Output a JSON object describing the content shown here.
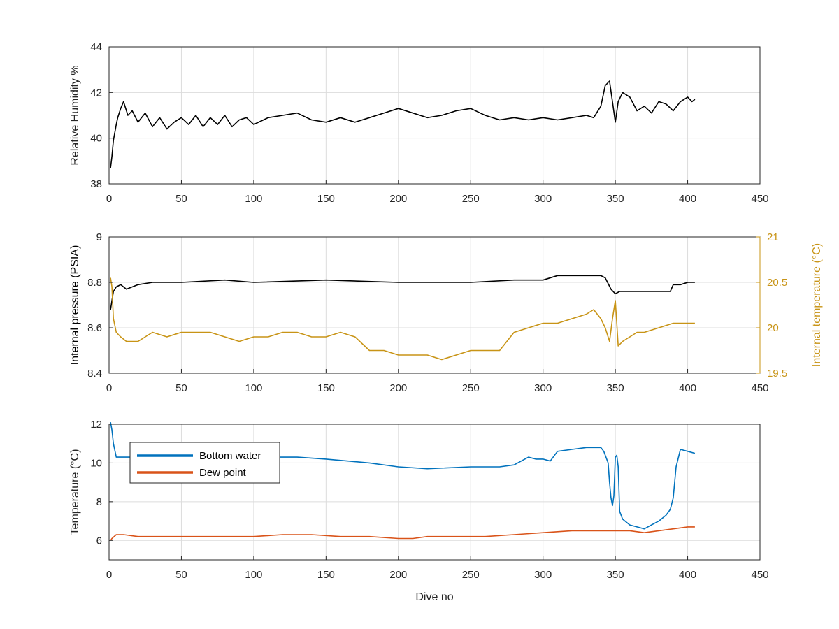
{
  "colors": {
    "background": "#ffffff",
    "axes_box": "#262626",
    "grid": "#dcdcdc",
    "black_series": "#000000",
    "blue": "#0072BD",
    "orange": "#D95319",
    "gold": "#C89416"
  },
  "chart_data": [
    {
      "type": "line",
      "title": "",
      "xlabel": "",
      "ylabel": "Relative Humidity %",
      "xlim": [
        0,
        450
      ],
      "ylim": [
        38,
        44
      ],
      "xticks": [
        0,
        50,
        100,
        150,
        200,
        250,
        300,
        350,
        400,
        450
      ],
      "yticks": [
        38,
        40,
        42,
        44
      ],
      "grid": true,
      "series": [
        {
          "color": "#000000",
          "x": [
            1,
            2,
            3,
            5,
            6,
            8,
            10,
            13,
            16,
            20,
            25,
            30,
            35,
            40,
            45,
            50,
            55,
            60,
            65,
            70,
            75,
            80,
            85,
            90,
            95,
            100,
            110,
            120,
            130,
            140,
            150,
            160,
            170,
            180,
            190,
            200,
            210,
            220,
            230,
            240,
            250,
            260,
            270,
            280,
            290,
            300,
            310,
            320,
            330,
            335,
            340,
            343,
            346,
            348,
            350,
            352,
            355,
            360,
            365,
            370,
            375,
            380,
            385,
            390,
            395,
            400,
            403,
            405
          ],
          "y": [
            38.7,
            39.2,
            39.9,
            40.6,
            40.9,
            41.3,
            41.6,
            41.0,
            41.2,
            40.7,
            41.1,
            40.5,
            40.9,
            40.4,
            40.7,
            40.9,
            40.6,
            41.0,
            40.5,
            40.9,
            40.6,
            41.0,
            40.5,
            40.8,
            40.9,
            40.6,
            40.9,
            41.0,
            41.1,
            40.8,
            40.7,
            40.9,
            40.7,
            40.9,
            41.1,
            41.3,
            41.1,
            40.9,
            41.0,
            41.2,
            41.3,
            41.0,
            40.8,
            40.9,
            40.8,
            40.9,
            40.8,
            40.9,
            41.0,
            40.9,
            41.4,
            42.3,
            42.5,
            41.6,
            40.7,
            41.6,
            42.0,
            41.8,
            41.2,
            41.4,
            41.1,
            41.6,
            41.5,
            41.2,
            41.6,
            41.8,
            41.6,
            41.7
          ]
        }
      ]
    },
    {
      "type": "line",
      "title": "",
      "xlabel": "",
      "ylabel": "Internal pressure (PSIA)",
      "ylabel_right": "Internal temperature (°C)",
      "xlim": [
        0,
        450
      ],
      "ylim": [
        8.4,
        9
      ],
      "ylim_right": [
        19.5,
        21
      ],
      "xticks": [
        0,
        50,
        100,
        150,
        200,
        250,
        300,
        350,
        400,
        450
      ],
      "yticks": [
        8.4,
        8.6,
        8.8,
        9
      ],
      "yticks_right": [
        19.5,
        20,
        20.5,
        21
      ],
      "grid": true,
      "series": [
        {
          "axis": "left",
          "color": "#000000",
          "x": [
            1,
            2,
            3,
            5,
            8,
            12,
            20,
            30,
            50,
            80,
            100,
            150,
            200,
            250,
            280,
            300,
            310,
            320,
            330,
            340,
            343,
            347,
            350,
            353,
            360,
            370,
            380,
            388,
            390,
            395,
            400,
            405
          ],
          "y": [
            8.68,
            8.72,
            8.76,
            8.78,
            8.79,
            8.77,
            8.79,
            8.8,
            8.8,
            8.81,
            8.8,
            8.81,
            8.8,
            8.8,
            8.81,
            8.81,
            8.83,
            8.83,
            8.83,
            8.83,
            8.82,
            8.77,
            8.75,
            8.76,
            8.76,
            8.76,
            8.76,
            8.76,
            8.79,
            8.79,
            8.8,
            8.8
          ]
        },
        {
          "axis": "right",
          "color": "#C89416",
          "x": [
            1,
            2,
            3,
            5,
            8,
            12,
            20,
            30,
            40,
            50,
            60,
            70,
            80,
            90,
            100,
            110,
            120,
            130,
            140,
            150,
            160,
            170,
            180,
            190,
            200,
            210,
            220,
            230,
            240,
            250,
            260,
            270,
            280,
            290,
            300,
            310,
            320,
            330,
            335,
            340,
            343,
            346,
            348,
            350,
            352,
            355,
            360,
            365,
            370,
            380,
            390,
            400,
            405
          ],
          "y": [
            20.55,
            20.45,
            20.1,
            19.95,
            19.9,
            19.85,
            19.85,
            19.95,
            19.9,
            19.95,
            19.95,
            19.95,
            19.9,
            19.85,
            19.9,
            19.9,
            19.95,
            19.95,
            19.9,
            19.9,
            19.95,
            19.9,
            19.75,
            19.75,
            19.7,
            19.7,
            19.7,
            19.65,
            19.7,
            19.75,
            19.75,
            19.75,
            19.95,
            20.0,
            20.05,
            20.05,
            20.1,
            20.15,
            20.2,
            20.1,
            20.0,
            19.85,
            20.1,
            20.3,
            19.8,
            19.85,
            19.9,
            19.95,
            19.95,
            20.0,
            20.05,
            20.05,
            20.05
          ]
        }
      ]
    },
    {
      "type": "line",
      "title": "",
      "xlabel": "Dive no",
      "ylabel": "Temperature (°C)",
      "xlim": [
        0,
        450
      ],
      "ylim": [
        5,
        12
      ],
      "xticks": [
        0,
        50,
        100,
        150,
        200,
        250,
        300,
        350,
        400,
        450
      ],
      "yticks": [
        6,
        8,
        10,
        12
      ],
      "grid": true,
      "legend_position": "top-left",
      "series": [
        {
          "name": "Bottom water",
          "color": "#0072BD",
          "x": [
            1,
            2,
            3,
            5,
            10,
            20,
            50,
            100,
            130,
            150,
            180,
            200,
            220,
            250,
            270,
            280,
            290,
            295,
            300,
            305,
            310,
            320,
            330,
            338,
            340,
            342,
            345,
            346,
            347,
            348,
            349,
            350,
            351,
            352,
            353,
            355,
            360,
            365,
            370,
            375,
            380,
            385,
            388,
            390,
            392,
            395,
            400,
            405
          ],
          "y": [
            12.1,
            11.7,
            11.0,
            10.3,
            10.3,
            10.3,
            10.3,
            10.3,
            10.3,
            10.2,
            10.0,
            9.8,
            9.7,
            9.8,
            9.8,
            9.9,
            10.3,
            10.2,
            10.2,
            10.1,
            10.6,
            10.7,
            10.8,
            10.8,
            10.8,
            10.6,
            10.0,
            9.0,
            8.2,
            7.8,
            8.3,
            10.3,
            10.4,
            9.8,
            7.5,
            7.1,
            6.8,
            6.7,
            6.6,
            6.8,
            7.0,
            7.3,
            7.6,
            8.2,
            9.8,
            10.7,
            10.6,
            10.5
          ]
        },
        {
          "name": "Dew point",
          "color": "#D95319",
          "x": [
            1,
            2,
            5,
            10,
            20,
            40,
            60,
            80,
            100,
            120,
            140,
            160,
            180,
            200,
            210,
            220,
            240,
            260,
            280,
            300,
            320,
            340,
            350,
            360,
            370,
            380,
            390,
            400,
            405
          ],
          "y": [
            6.0,
            6.1,
            6.3,
            6.3,
            6.2,
            6.2,
            6.2,
            6.2,
            6.2,
            6.3,
            6.3,
            6.2,
            6.2,
            6.1,
            6.1,
            6.2,
            6.2,
            6.2,
            6.3,
            6.4,
            6.5,
            6.5,
            6.5,
            6.5,
            6.4,
            6.5,
            6.6,
            6.7,
            6.7
          ]
        }
      ]
    }
  ]
}
